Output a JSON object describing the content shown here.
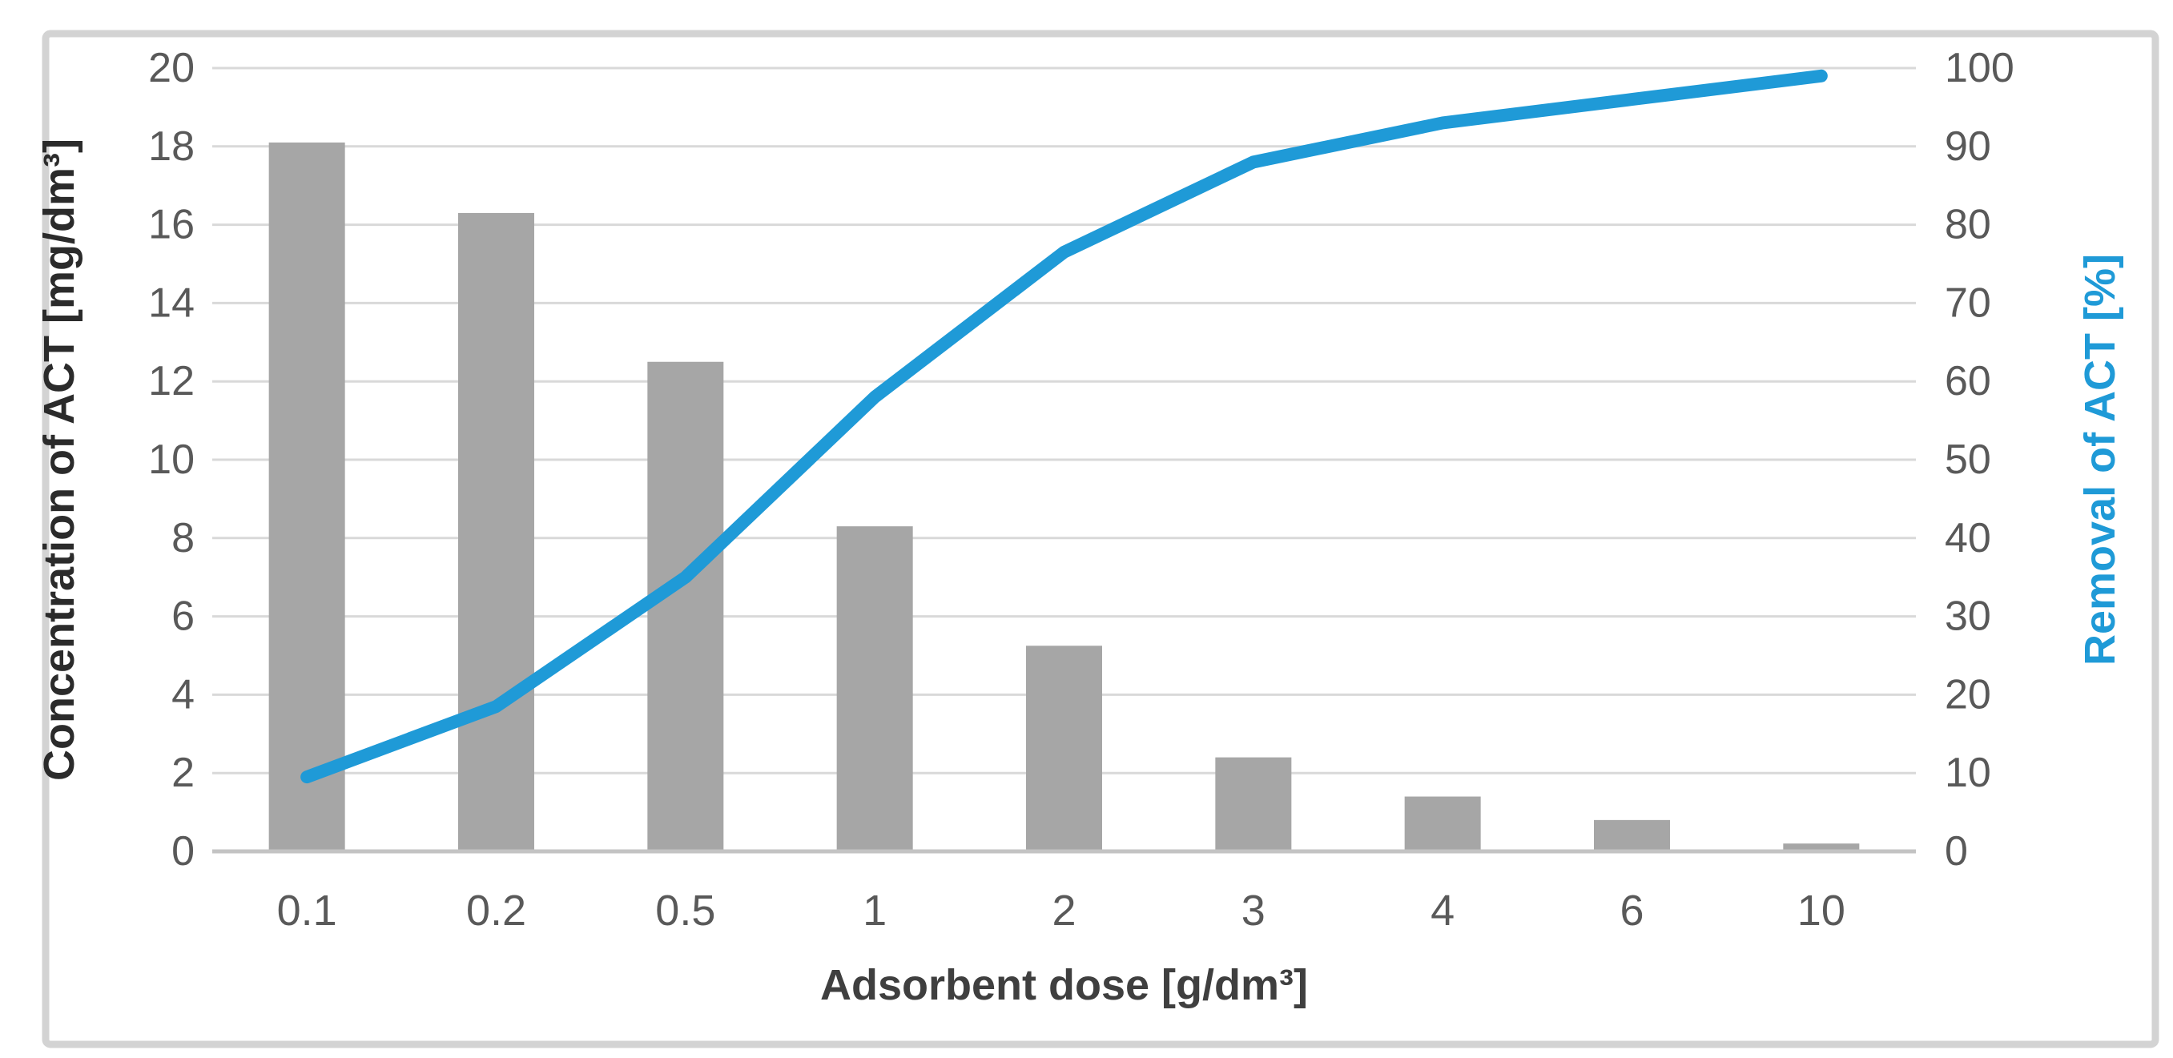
{
  "chart_data": {
    "type": "combo",
    "categories": [
      "0.1",
      "0.2",
      "0.5",
      "1",
      "2",
      "3",
      "4",
      "6",
      "10"
    ],
    "series": [
      {
        "name": "Concentration of ACT",
        "type": "bar",
        "axis": "left",
        "values": [
          18.1,
          16.3,
          12.5,
          8.3,
          5.25,
          2.4,
          1.4,
          0.8,
          0.2
        ]
      },
      {
        "name": "Removal of ACT",
        "type": "line",
        "axis": "right",
        "values": [
          9.5,
          18.5,
          35,
          58,
          76.5,
          88,
          93,
          96,
          99
        ]
      }
    ],
    "title": "",
    "xlabel": "Adsorbent dose [g/dm³]",
    "ylabel_left": "Concentration of ACT [mg/dm³]",
    "ylabel_right": "Removal of ACT [%]",
    "ylim_left": [
      0,
      20
    ],
    "ylim_right": [
      0,
      100
    ],
    "y_ticks_left": [
      "0",
      "2",
      "4",
      "6",
      "8",
      "10",
      "12",
      "14",
      "16",
      "18",
      "20"
    ],
    "y_ticks_right": [
      "0",
      "10",
      "20",
      "30",
      "40",
      "50",
      "60",
      "70",
      "80",
      "90",
      "100"
    ],
    "grid": true,
    "legend": "none"
  },
  "colors": {
    "bar": "#a6a6a6",
    "line": "#1f9ad7",
    "gridline": "#d9d9d9",
    "baseline": "#c3c3c3",
    "tick_label": "#595959",
    "x_title": "#3f3f3f",
    "y_left_title": "#2b2b2b",
    "y_right_title": "#1f9ad7",
    "frame": "#d3d3d3",
    "background": "#ffffff"
  }
}
